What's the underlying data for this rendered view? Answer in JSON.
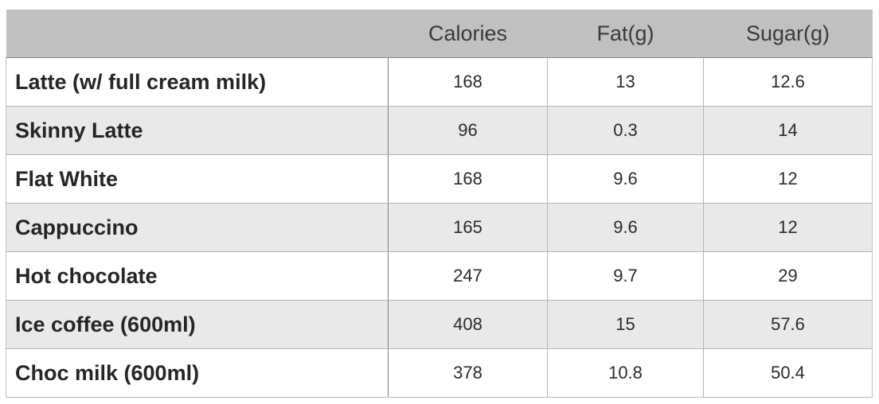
{
  "table": {
    "headers": [
      "",
      "Calories",
      "Fat(g)",
      "Sugar(g)"
    ],
    "rows": [
      {
        "name": "Latte (w/ full cream milk)",
        "calories": "168",
        "fat": "13",
        "sugar": "12.6"
      },
      {
        "name": "Skinny Latte",
        "calories": "96",
        "fat": "0.3",
        "sugar": "14"
      },
      {
        "name": "Flat White",
        "calories": "168",
        "fat": "9.6",
        "sugar": "12"
      },
      {
        "name": "Cappuccino",
        "calories": "165",
        "fat": "9.6",
        "sugar": "12"
      },
      {
        "name": "Hot chocolate",
        "calories": "247",
        "fat": "9.7",
        "sugar": "29"
      },
      {
        "name": "Ice coffee (600ml)",
        "calories": "408",
        "fat": "15",
        "sugar": "57.6"
      },
      {
        "name": "Choc milk (600ml)",
        "calories": "378",
        "fat": "10.8",
        "sugar": "50.4"
      }
    ]
  },
  "colors": {
    "header_background": "#bfc0bf",
    "stripe_background": "#e8e9e8",
    "row_background": "#ffffff"
  }
}
